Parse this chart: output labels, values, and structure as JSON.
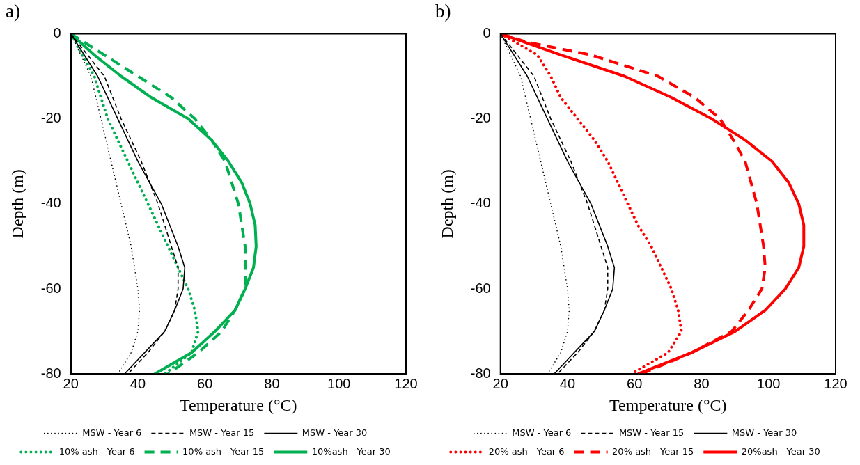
{
  "chart_data": [
    {
      "type": "line",
      "title": "a)",
      "xlabel": "Temperature (°C)",
      "ylabel": "Depth (m)",
      "xlim": [
        20,
        120
      ],
      "xticks": [
        20,
        40,
        60,
        80,
        100,
        120
      ],
      "ylim": [
        -80,
        0
      ],
      "yticks": [
        -80,
        -60,
        -40,
        -20,
        0
      ],
      "legend": "bottom",
      "marker": "none",
      "grid": false,
      "series": [
        {
          "name": "MSW - Year 6",
          "color": "#000000",
          "line_style": "dotted",
          "x": [
            20,
            26,
            29,
            32,
            35,
            38,
            40,
            40.5,
            40,
            38,
            34
          ],
          "values": [
            0,
            -10,
            -20,
            -30,
            -40,
            -50,
            -60,
            -65,
            -70,
            -75,
            -80
          ]
        },
        {
          "name": "MSW - Year 15",
          "color": "#000000",
          "line_style": "dashed",
          "x": [
            20,
            30,
            35,
            41,
            46,
            50,
            52,
            52,
            51,
            48,
            43,
            37
          ],
          "values": [
            0,
            -10,
            -20,
            -30,
            -40,
            -50,
            -55,
            -60,
            -65,
            -70,
            -75,
            -80
          ]
        },
        {
          "name": "MSW - Year 30",
          "color": "#000000",
          "line_style": "solid",
          "x": [
            20,
            28,
            34,
            40,
            47,
            52,
            54,
            53.5,
            51,
            48,
            42,
            36
          ],
          "values": [
            0,
            -10,
            -20,
            -30,
            -40,
            -50,
            -55,
            -60,
            -65,
            -70,
            -75,
            -80
          ]
        },
        {
          "name": "10% ash - Year 6",
          "color": "#00b050",
          "line_style": "dotted",
          "x": [
            20,
            27,
            31,
            37,
            43,
            49,
            52,
            55,
            57,
            58,
            56,
            48
          ],
          "values": [
            0,
            -10,
            -20,
            -30,
            -40,
            -50,
            -55,
            -60,
            -65,
            -70,
            -75,
            -80
          ]
        },
        {
          "name": "10% ash - Year 15",
          "color": "#00b050",
          "line_style": "dashed",
          "x": [
            20,
            30,
            40,
            50,
            57,
            62,
            66,
            70,
            72,
            72,
            69,
            65,
            58,
            49
          ],
          "values": [
            0,
            -5,
            -10,
            -15,
            -20,
            -25,
            -30,
            -40,
            -50,
            -60,
            -65,
            -70,
            -75,
            -80
          ]
        },
        {
          "name": "10%ash - Year 30",
          "color": "#00b050",
          "line_style": "solid",
          "x": [
            20,
            27,
            35,
            44,
            55,
            62,
            67,
            71,
            73.5,
            75,
            75.3,
            74.5,
            72,
            69,
            63,
            56,
            45
          ],
          "values": [
            0,
            -5,
            -10,
            -15,
            -20,
            -25,
            -30,
            -35,
            -40,
            -45,
            -50,
            -55,
            -60,
            -65,
            -70,
            -75,
            -80
          ]
        }
      ]
    },
    {
      "type": "line",
      "title": "b)",
      "xlabel": "Temperature (°C)",
      "ylabel": "Depth (m)",
      "xlim": [
        20,
        120
      ],
      "xticks": [
        20,
        40,
        60,
        80,
        100,
        120
      ],
      "ylim": [
        -80,
        0
      ],
      "yticks": [
        -80,
        -60,
        -40,
        -20,
        0
      ],
      "legend": "bottom",
      "marker": "none",
      "grid": false,
      "series": [
        {
          "name": "MSW - Year 6",
          "color": "#000000",
          "line_style": "dotted",
          "x": [
            20,
            26,
            29,
            32,
            35,
            38,
            40,
            40.5,
            40,
            38,
            34
          ],
          "values": [
            0,
            -10,
            -20,
            -30,
            -40,
            -50,
            -60,
            -65,
            -70,
            -75,
            -80
          ]
        },
        {
          "name": "MSW - Year 15",
          "color": "#000000",
          "line_style": "dashed",
          "x": [
            20,
            30,
            35,
            41,
            46,
            50,
            52,
            52,
            51,
            48,
            43,
            37
          ],
          "values": [
            0,
            -10,
            -20,
            -30,
            -40,
            -50,
            -55,
            -60,
            -65,
            -70,
            -75,
            -80
          ]
        },
        {
          "name": "MSW - Year 30",
          "color": "#000000",
          "line_style": "solid",
          "x": [
            20,
            28,
            34,
            40,
            47,
            52,
            54,
            53.5,
            51,
            48,
            42,
            36
          ],
          "values": [
            0,
            -10,
            -20,
            -30,
            -40,
            -50,
            -55,
            -60,
            -65,
            -70,
            -75,
            -80
          ]
        },
        {
          "name": "20% ash - Year 6",
          "color": "#ff0000",
          "line_style": "dotted",
          "x": [
            20,
            31,
            35,
            38,
            43,
            48,
            52,
            55,
            58,
            61,
            65,
            68,
            71,
            73,
            74,
            70,
            59
          ],
          "values": [
            0,
            -5,
            -10,
            -15,
            -20,
            -25,
            -30,
            -35,
            -40,
            -45,
            -50,
            -55,
            -60,
            -65,
            -70,
            -75,
            -80
          ]
        },
        {
          "name": "20% ash - Year 15",
          "color": "#ff0000",
          "line_style": "dashed",
          "x": [
            20,
            28,
            47,
            67,
            78,
            85.5,
            89.5,
            93,
            96.5,
            98.5,
            99,
            98,
            94,
            89,
            77,
            62
          ],
          "values": [
            0,
            -2,
            -5,
            -10,
            -15,
            -20,
            -25,
            -30,
            -40,
            -50,
            -55,
            -60,
            -65,
            -70,
            -75,
            -80
          ]
        },
        {
          "name": "20%ash - Year 30",
          "color": "#ff0000",
          "line_style": "solid",
          "x": [
            20,
            38,
            57,
            71,
            83,
            93,
            101,
            106,
            109,
            110.5,
            110.5,
            109,
            105,
            99,
            90,
            77,
            61
          ],
          "values": [
            0,
            -5,
            -10,
            -15,
            -20,
            -25,
            -30,
            -35,
            -40,
            -45,
            -50,
            -55,
            -60,
            -65,
            -70,
            -75,
            -80
          ]
        }
      ]
    }
  ]
}
